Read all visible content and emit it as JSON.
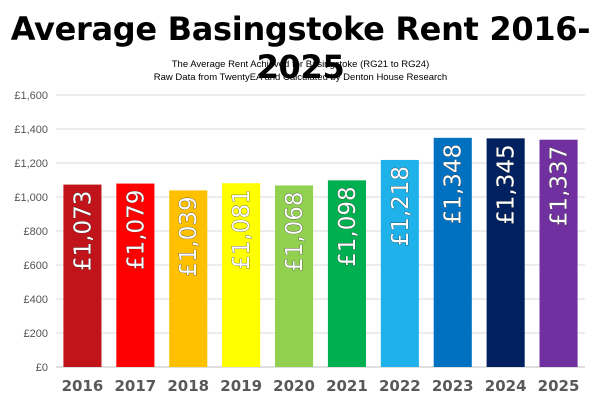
{
  "header": {
    "title": "Average Basingstoke Rent 2016-2025",
    "subtitle_line1": "The Average Rent Achieved for Basingstoke (RG21 to RG24)",
    "subtitle_line2": "Raw Data from TwentyEA and Calculated by Denton House Research"
  },
  "chart_data": {
    "type": "bar",
    "title": "Average Basingstoke Rent 2016-2025",
    "subtitle": "The Average Rent Achieved for Basingstoke (RG21 to RG24)",
    "categories": [
      "2016",
      "2017",
      "2018",
      "2019",
      "2020",
      "2021",
      "2022",
      "2023",
      "2024",
      "2025"
    ],
    "values": [
      1073,
      1079,
      1039,
      1081,
      1068,
      1098,
      1218,
      1348,
      1345,
      1337
    ],
    "data_labels": [
      "£1,073",
      "£1,079",
      "£1,039",
      "£1,081",
      "£1,068",
      "£1,098",
      "£1,218",
      "£1,348",
      "£1,345",
      "£1,337"
    ],
    "bar_colors": [
      "#c0141a",
      "#ff0000",
      "#ffc000",
      "#ffff00",
      "#92d050",
      "#00b050",
      "#1fb1ea",
      "#0070c0",
      "#002060",
      "#7030a0"
    ],
    "y_ticks": [
      "£0",
      "£200",
      "£400",
      "£600",
      "£800",
      "£1,000",
      "£1,200",
      "£1,400",
      "£1,600"
    ],
    "ylim": [
      0,
      1600
    ],
    "ytick_step": 200,
    "grid": true,
    "legend": "none",
    "xlabel": "",
    "ylabel": ""
  }
}
